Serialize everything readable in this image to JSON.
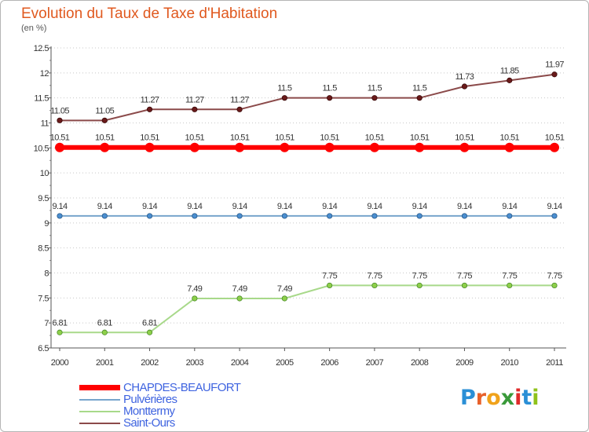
{
  "title": "Evolution du Taux de Taxe d'Habitation",
  "subtitle": "(en %)",
  "logo": {
    "text": "Proxiti",
    "letters": [
      "P",
      "r",
      "o",
      "x",
      "i",
      "t",
      "i"
    ],
    "colors": [
      "#2a8fd6",
      "#e8612a",
      "#f0a21a",
      "#3a9a3a",
      "#e02a2a",
      "#2a8fd6",
      "#8fc21a"
    ]
  },
  "chart_data": {
    "type": "line",
    "title": "Evolution du Taux de Taxe d'Habitation",
    "ylabel": "(en %)",
    "xlabel": "",
    "x": [
      "2000",
      "2001",
      "2002",
      "2003",
      "2004",
      "2005",
      "2006",
      "2007",
      "2008",
      "2009",
      "2010",
      "2011"
    ],
    "ylim": [
      6.5,
      12.5
    ],
    "yticks": [
      "6.5",
      "7",
      "7.5",
      "8",
      "8.5",
      "9",
      "9.5",
      "10",
      "10.5",
      "11",
      "11.5",
      "12",
      "12.5"
    ],
    "grid": "horizontal dotted",
    "legend_position": "bottom-left",
    "series": [
      {
        "name": "CHAPDES-BEAUFORT",
        "color": "#ff0000",
        "values": [
          10.51,
          10.51,
          10.51,
          10.51,
          10.51,
          10.51,
          10.51,
          10.51,
          10.51,
          10.51,
          10.51,
          10.51
        ],
        "labels": [
          "10.51",
          "10.51",
          "10.51",
          "10.51",
          "10.51",
          "10.51",
          "10.51",
          "10.51",
          "10.51",
          "10.51",
          "10.51",
          "10.51"
        ]
      },
      {
        "name": "Pulvérières",
        "color": "#77a5cc",
        "values": [
          9.14,
          9.14,
          9.14,
          9.14,
          9.14,
          9.14,
          9.14,
          9.14,
          9.14,
          9.14,
          9.14,
          9.14
        ],
        "labels": [
          "9.14",
          "9.14",
          "9.14",
          "9.14",
          "9.14",
          "9.14",
          "9.14",
          "9.14",
          "9.14",
          "9.14",
          "9.14",
          "9.14"
        ]
      },
      {
        "name": "Monttermy",
        "color": "#a8d98a",
        "values": [
          6.81,
          6.81,
          6.81,
          7.49,
          7.49,
          7.49,
          7.75,
          7.75,
          7.75,
          7.75,
          7.75,
          7.75
        ],
        "labels": [
          "6.81",
          "6.81",
          "6.81",
          "7.49",
          "7.49",
          "7.49",
          "7.75",
          "7.75",
          "7.75",
          "7.75",
          "7.75",
          "7.75"
        ]
      },
      {
        "name": "Saint-Ours",
        "color": "#8b4a4a",
        "values": [
          11.05,
          11.05,
          11.27,
          11.27,
          11.27,
          11.5,
          11.5,
          11.5,
          11.5,
          11.73,
          11.85,
          11.97
        ],
        "labels": [
          "11.05",
          "11.05",
          "11.27",
          "11.27",
          "11.27",
          "11.5",
          "11.5",
          "11.5",
          "11.5",
          "11.73",
          "11.85",
          "11.97"
        ]
      }
    ]
  }
}
